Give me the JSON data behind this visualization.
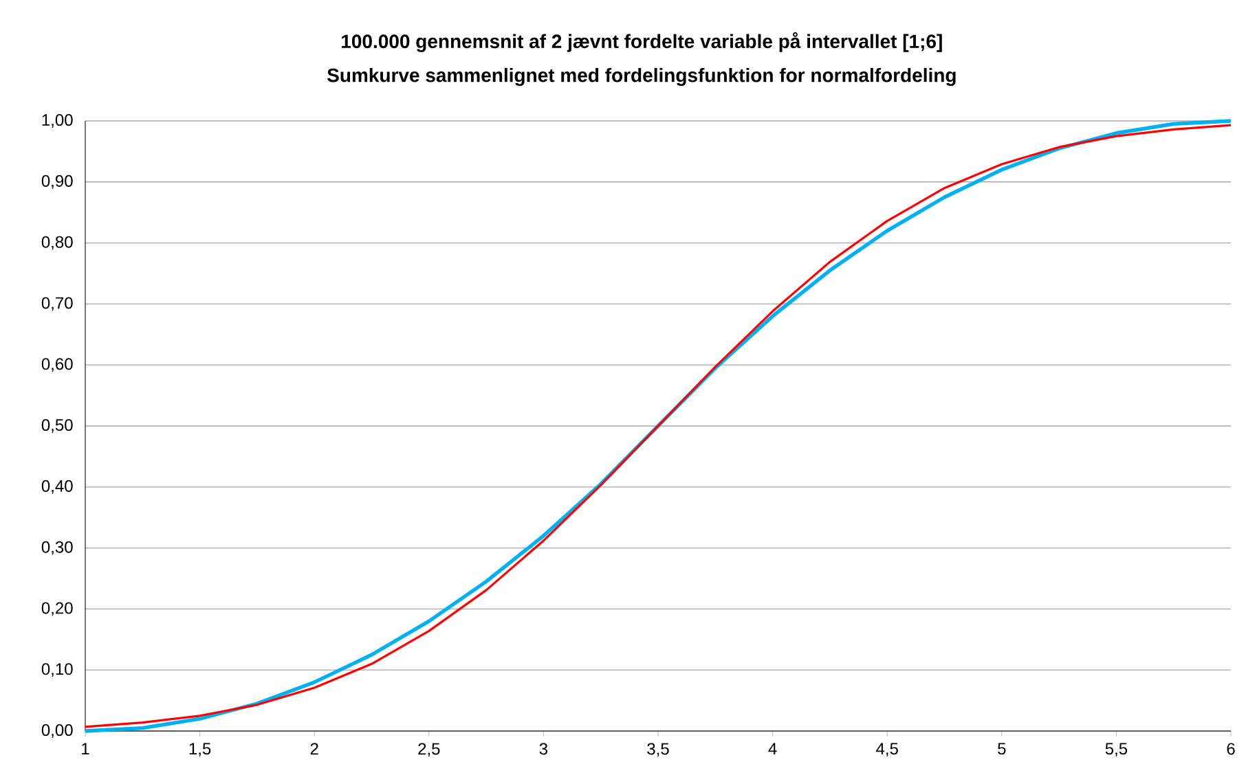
{
  "chart_data": {
    "type": "line",
    "title": "100.000 gennemsnit af  2  jævnt fordelte variable på intervallet  [1;6]",
    "subtitle": "Sumkurve sammenlignet med fordelingsfunktion for normalfordeling",
    "x": [
      1,
      1.25,
      1.5,
      1.75,
      2,
      2.25,
      2.5,
      2.75,
      3,
      3.25,
      3.5,
      3.75,
      4,
      4.25,
      4.5,
      4.75,
      5,
      5.25,
      5.5,
      5.75,
      6
    ],
    "series": [
      {
        "color": "#00b0f0",
        "values": [
          0,
          0.005,
          0.02,
          0.045,
          0.08,
          0.125,
          0.18,
          0.245,
          0.32,
          0.405,
          0.5,
          0.595,
          0.68,
          0.755,
          0.82,
          0.875,
          0.92,
          0.955,
          0.98,
          0.995,
          1
        ]
      },
      {
        "color": "#ff0000",
        "values": [
          0.007,
          0.014,
          0.025,
          0.043,
          0.071,
          0.11,
          0.164,
          0.231,
          0.312,
          0.403,
          0.5,
          0.597,
          0.688,
          0.769,
          0.836,
          0.89,
          0.929,
          0.957,
          0.975,
          0.986,
          0.993
        ]
      }
    ],
    "xlim": [
      1,
      6
    ],
    "ylim": [
      0,
      1
    ],
    "xticks": [
      1,
      {
        "value": 1.5,
        "label": "1,5"
      },
      2,
      {
        "value": 2.5,
        "label": "2,5"
      },
      3,
      {
        "value": 3.5,
        "label": "3,5"
      },
      4,
      {
        "value": 4.5,
        "label": "4,5"
      },
      5,
      {
        "value": 5.5,
        "label": "5,5"
      },
      6
    ],
    "yticks": [
      {
        "value": 0,
        "label": "0,00"
      },
      {
        "value": 0.1,
        "label": "0,10"
      },
      {
        "value": 0.2,
        "label": "0,20"
      },
      {
        "value": 0.3,
        "label": "0,30"
      },
      {
        "value": 0.4,
        "label": "0,40"
      },
      {
        "value": 0.5,
        "label": "0,50"
      },
      {
        "value": 0.6,
        "label": "0,60"
      },
      {
        "value": 0.7,
        "label": "0,70"
      },
      {
        "value": 0.8,
        "label": "0,80"
      },
      {
        "value": 0.9,
        "label": "0,90"
      },
      {
        "value": 1,
        "label": "1,00"
      }
    ],
    "grid": "y"
  }
}
